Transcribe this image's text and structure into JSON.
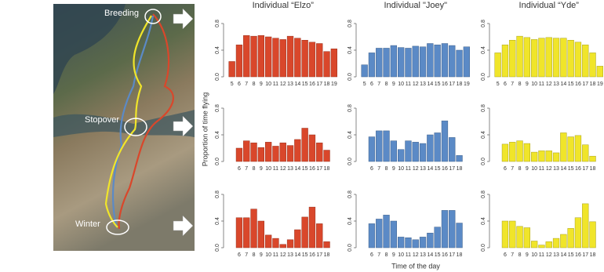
{
  "map": {
    "labels": [
      "Breeding",
      "Stopover",
      "Winter"
    ]
  },
  "figure": {
    "ylabel": "Proportion of time flying",
    "xlabel": "Time of the day"
  },
  "chart_data": [
    {
      "type": "bar",
      "title": "Individual “Elzo”",
      "color": "#d9472b",
      "categories": [
        5,
        6,
        7,
        8,
        9,
        10,
        11,
        12,
        13,
        14,
        15,
        16,
        17,
        18,
        19
      ],
      "values": [
        0.23,
        0.48,
        0.62,
        0.61,
        0.62,
        0.6,
        0.58,
        0.56,
        0.61,
        0.58,
        0.55,
        0.52,
        0.5,
        0.38,
        0.42
      ],
      "ylim": [
        0,
        0.8
      ],
      "yticks": [
        {
          "value": 0,
          "label": "0.0"
        },
        0.4,
        0.8
      ]
    },
    {
      "type": "bar",
      "title": "Individual \"Joey\"",
      "color": "#5b8ac6",
      "categories": [
        5,
        6,
        7,
        8,
        9,
        10,
        11,
        12,
        13,
        14,
        15,
        16,
        17,
        18,
        19
      ],
      "values": [
        0.18,
        0.36,
        0.43,
        0.43,
        0.47,
        0.44,
        0.43,
        0.46,
        0.45,
        0.5,
        0.48,
        0.5,
        0.47,
        0.4,
        0.45
      ],
      "ylim": [
        0,
        0.8
      ],
      "yticks": [
        {
          "value": 0,
          "label": "0.0"
        },
        0.4,
        0.8
      ]
    },
    {
      "type": "bar",
      "title": "Individual “Yde”",
      "color": "#f0e52a",
      "categories": [
        5,
        6,
        7,
        8,
        9,
        10,
        11,
        12,
        13,
        14,
        15,
        16,
        17,
        18,
        19
      ],
      "values": [
        0.36,
        0.48,
        0.55,
        0.61,
        0.59,
        0.56,
        0.58,
        0.59,
        0.58,
        0.58,
        0.55,
        0.52,
        0.48,
        0.36,
        0.16
      ],
      "ylim": [
        0,
        0.8
      ],
      "yticks": [
        {
          "value": 0,
          "label": "0.0"
        },
        0.4,
        0.8
      ]
    },
    {
      "type": "bar",
      "color": "#d9472b",
      "categories": [
        6,
        7,
        8,
        9,
        10,
        11,
        12,
        13,
        14,
        15,
        16,
        17,
        18
      ],
      "values": [
        0.2,
        0.31,
        0.28,
        0.21,
        0.29,
        0.23,
        0.28,
        0.24,
        0.33,
        0.5,
        0.4,
        0.28,
        0.17
      ],
      "ylim": [
        0,
        0.8
      ],
      "yticks": [
        {
          "value": 0,
          "label": "0.0"
        },
        0.4,
        0.8
      ]
    },
    {
      "type": "bar",
      "color": "#5b8ac6",
      "categories": [
        6,
        7,
        8,
        9,
        10,
        11,
        12,
        13,
        14,
        15,
        16,
        17,
        18
      ],
      "values": [
        0.37,
        0.46,
        0.46,
        0.31,
        0.18,
        0.31,
        0.29,
        0.27,
        0.4,
        0.43,
        0.61,
        0.36,
        0.09
      ],
      "ylim": [
        0,
        0.8
      ],
      "yticks": [
        {
          "value": 0,
          "label": "0.0"
        },
        0.4,
        0.8
      ]
    },
    {
      "type": "bar",
      "color": "#f0e52a",
      "categories": [
        6,
        7,
        8,
        9,
        10,
        11,
        12,
        13,
        14,
        15,
        16,
        17,
        18
      ],
      "values": [
        0.26,
        0.29,
        0.31,
        0.27,
        0.14,
        0.16,
        0.16,
        0.13,
        0.43,
        0.37,
        0.39,
        0.25,
        0.08
      ],
      "ylim": [
        0,
        0.8
      ],
      "yticks": [
        {
          "value": 0,
          "label": "0.0"
        },
        0.4,
        0.8
      ]
    },
    {
      "type": "bar",
      "color": "#d9472b",
      "categories": [
        6,
        7,
        8,
        9,
        10,
        11,
        12,
        13,
        14,
        15,
        16,
        17,
        18
      ],
      "values": [
        0.45,
        0.45,
        0.58,
        0.4,
        0.19,
        0.14,
        0.05,
        0.12,
        0.27,
        0.46,
        0.61,
        0.36,
        0.09
      ],
      "ylim": [
        0,
        0.8
      ],
      "yticks": [
        {
          "value": 0,
          "label": "0.0"
        },
        0.4,
        0.8
      ]
    },
    {
      "type": "bar",
      "color": "#5b8ac6",
      "categories": [
        6,
        7,
        8,
        9,
        10,
        11,
        12,
        13,
        14,
        15,
        16,
        17,
        18
      ],
      "values": [
        0.36,
        0.43,
        0.49,
        0.4,
        0.16,
        0.15,
        0.12,
        0.16,
        0.22,
        0.31,
        0.56,
        0.56,
        0.37
      ],
      "ylim": [
        0,
        0.8
      ],
      "yticks": [
        {
          "value": 0,
          "label": "0.0"
        },
        0.4,
        0.8
      ]
    },
    {
      "type": "bar",
      "color": "#f0e52a",
      "categories": [
        6,
        7,
        8,
        9,
        10,
        11,
        12,
        13,
        14,
        15,
        16,
        17,
        18
      ],
      "values": [
        0.4,
        0.4,
        0.32,
        0.3,
        0.1,
        0.04,
        0.09,
        0.14,
        0.2,
        0.29,
        0.45,
        0.66,
        0.39
      ],
      "ylim": [
        0,
        0.8
      ],
      "yticks": [
        {
          "value": 0,
          "label": "0.0"
        },
        0.4,
        0.8
      ]
    }
  ]
}
